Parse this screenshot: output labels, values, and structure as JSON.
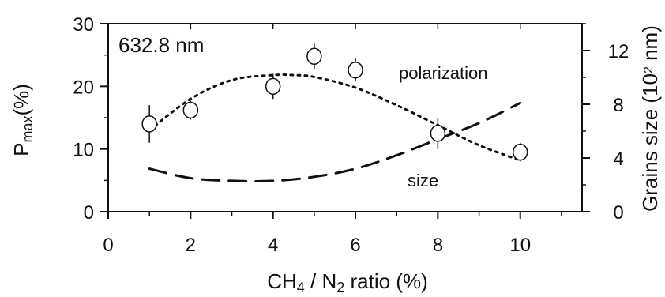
{
  "chart_data": {
    "type": "scatter",
    "annotation_wavelength": "632.8 nm",
    "xlabel": {
      "main": "CH",
      "sub1": "4",
      "mid": " / N",
      "sub2": "2",
      "tail": " ratio (%)"
    },
    "ylabel_left": {
      "main": "P",
      "sub": "max",
      "tail": "(%)"
    },
    "ylabel_right": {
      "main": "Grains size (10",
      "sup": "2",
      "tail": " nm)"
    },
    "xlim": [
      0,
      11.5
    ],
    "ylim_left": [
      0,
      30
    ],
    "ylim_right": [
      0,
      14
    ],
    "x_ticks": [
      0,
      2,
      4,
      6,
      8,
      10
    ],
    "x_tick_labels": [
      "0",
      "2",
      "4",
      "6",
      "8",
      "10"
    ],
    "y_left_ticks": [
      0,
      10,
      20,
      30
    ],
    "y_left_tick_labels": [
      "0",
      "10",
      "20",
      "30"
    ],
    "y_right_ticks": [
      0,
      4,
      8,
      12
    ],
    "y_right_tick_labels": [
      "0",
      "4",
      "8",
      "12"
    ],
    "series": [
      {
        "name": "polarization",
        "axis": "left",
        "marker": "open-circle",
        "x": [
          1,
          2,
          4,
          5,
          6,
          8,
          10
        ],
        "y": [
          14.0,
          16.2,
          20.0,
          24.8,
          22.6,
          12.5,
          9.5
        ],
        "err": [
          3.0,
          1.5,
          2.0,
          2.0,
          1.8,
          2.5,
          1.5
        ]
      }
    ],
    "fits": [
      {
        "label": "polarization",
        "axis": "left",
        "style": "dotted",
        "x": [
          1,
          2,
          3,
          4,
          4.5,
          5,
          6,
          7,
          8,
          9,
          10
        ],
        "y": [
          13.0,
          18.0,
          21.0,
          21.8,
          21.8,
          21.5,
          19.8,
          17.0,
          13.8,
          10.6,
          8.2
        ]
      },
      {
        "label": "size",
        "axis": "right",
        "style": "dashed",
        "x": [
          1,
          2,
          3,
          4,
          5,
          6,
          7,
          8,
          9,
          10
        ],
        "y": [
          3.2,
          2.5,
          2.3,
          2.3,
          2.6,
          3.2,
          4.2,
          5.4,
          6.6,
          8.1
        ]
      }
    ],
    "labels": {
      "polarization": "polarization",
      "size": "size"
    },
    "grid": false,
    "legend": "none"
  }
}
